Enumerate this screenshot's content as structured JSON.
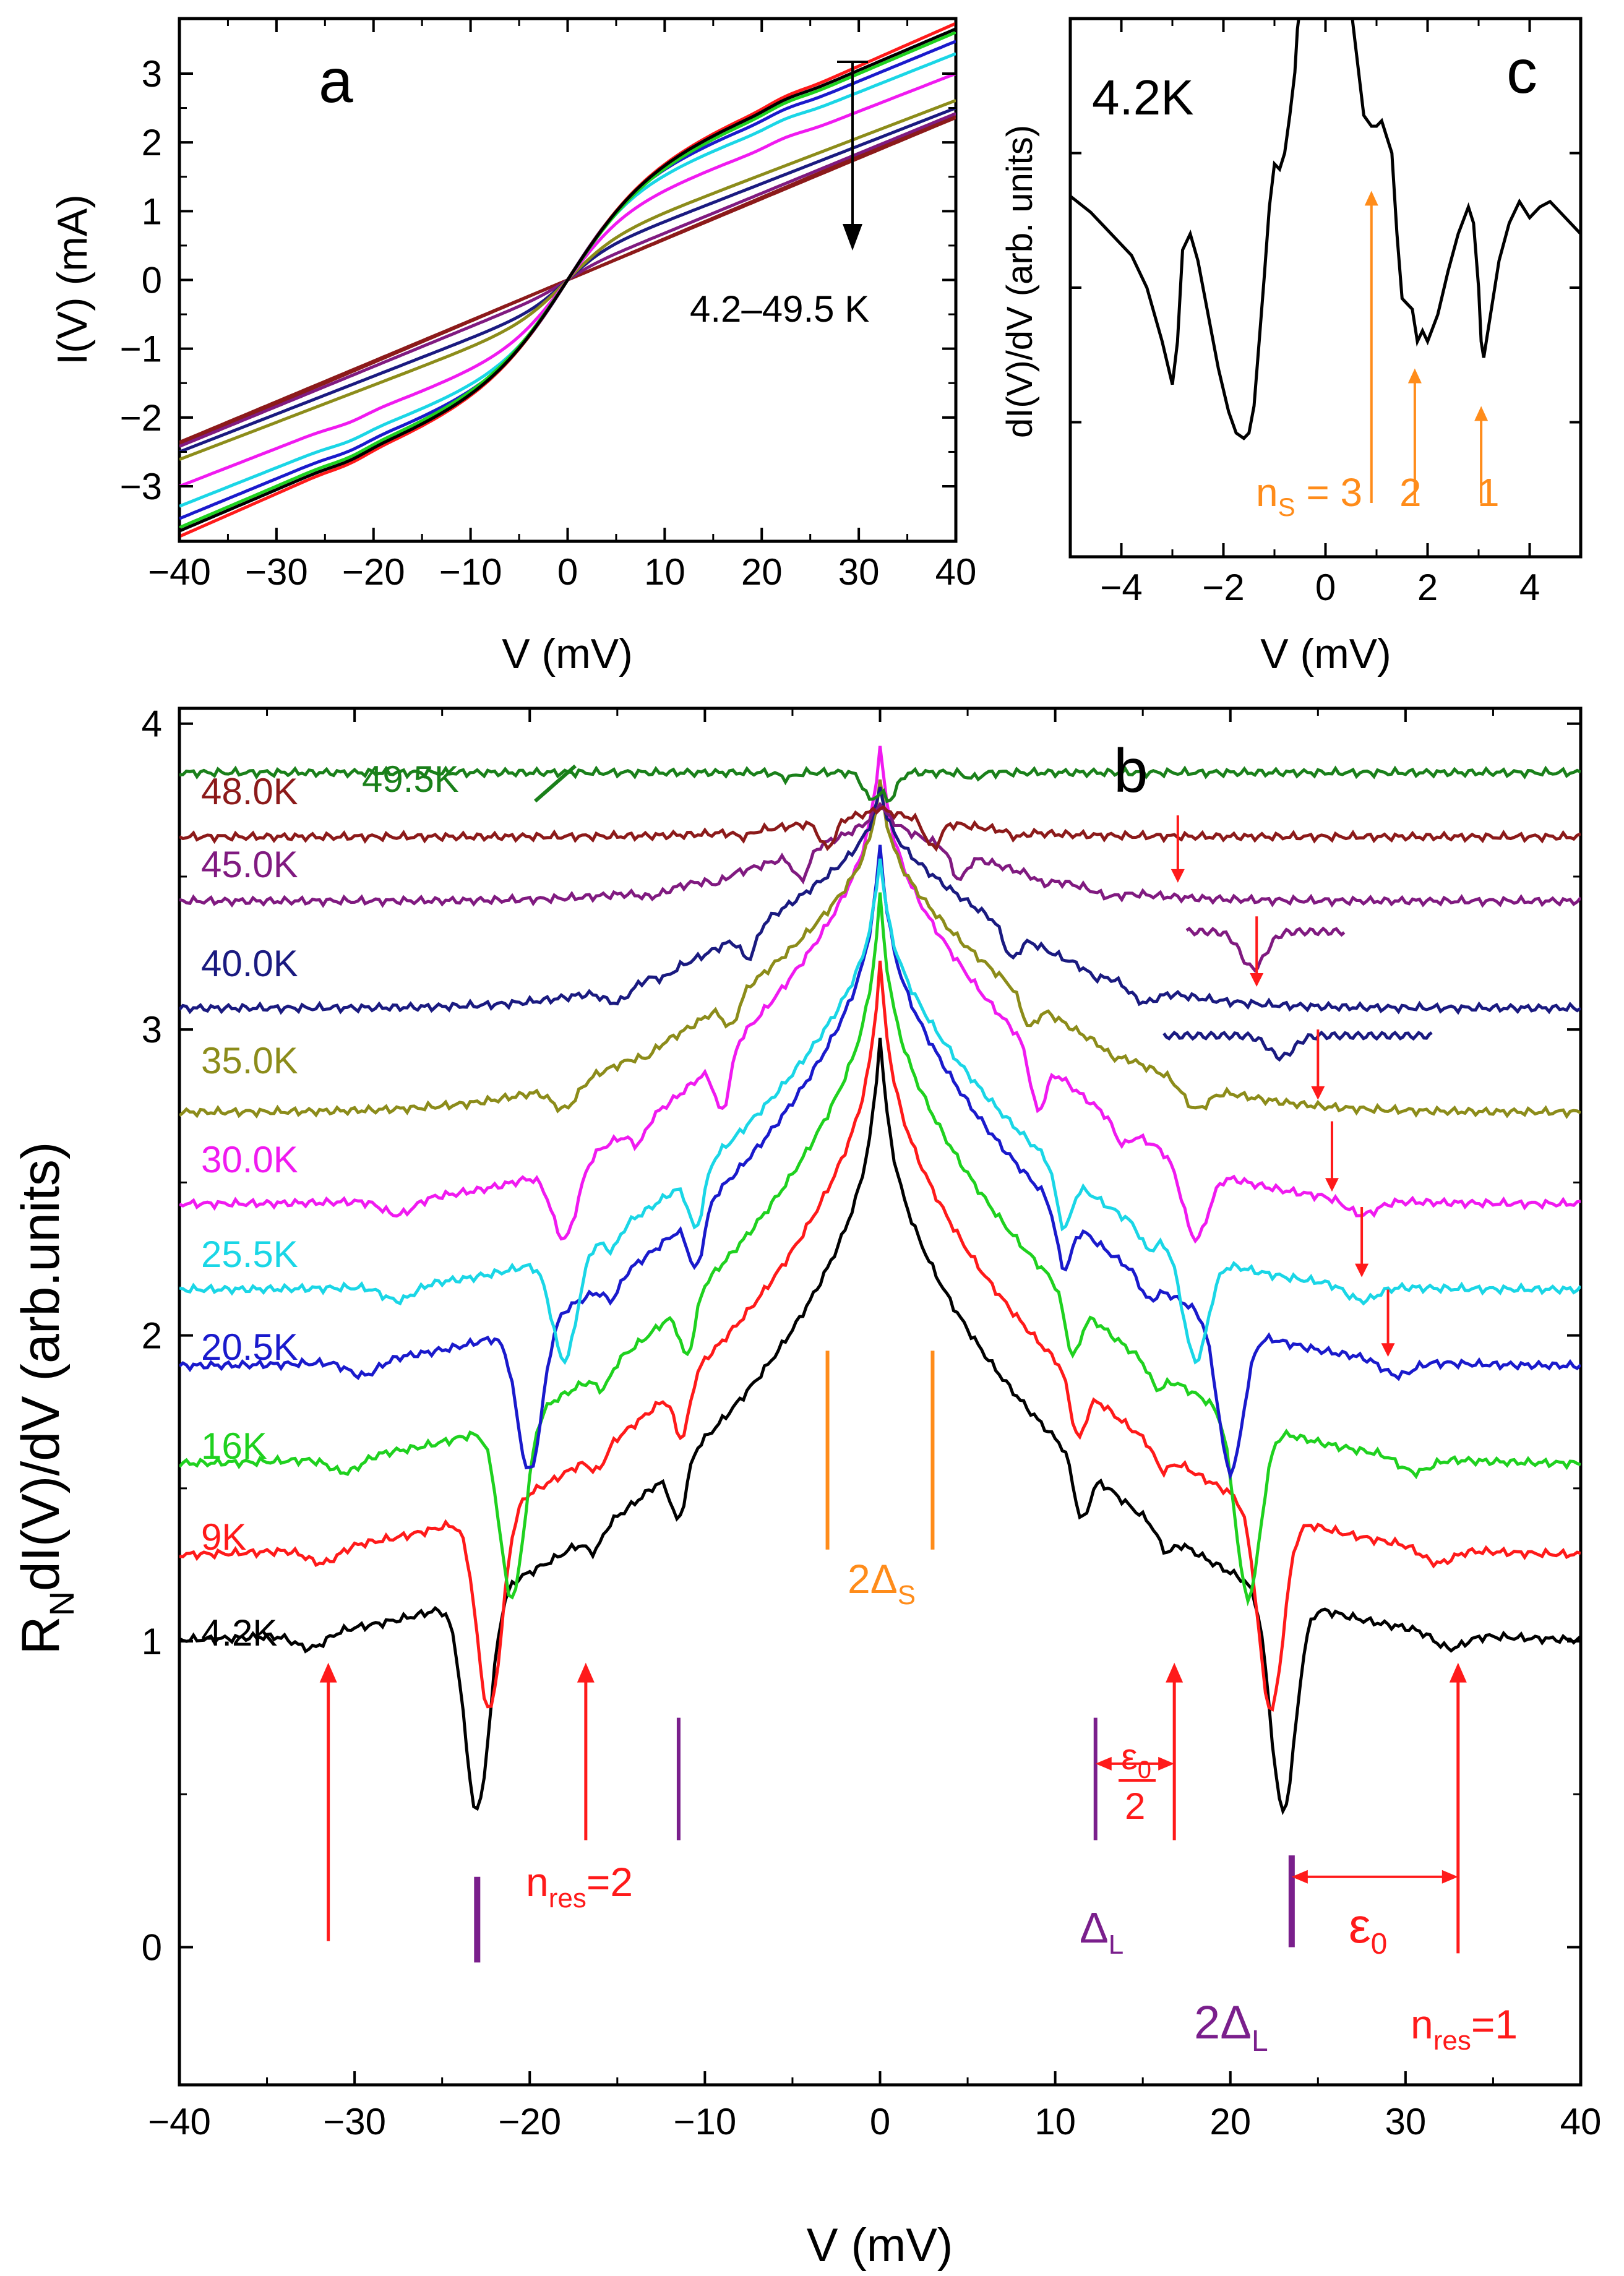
{
  "figure": {
    "colors": {
      "orange": "#ff8c1a",
      "red": "#ff1a1a",
      "purple": "#7a1f8c",
      "black": "#000000"
    }
  },
  "chart_data": [
    {
      "panel": "a",
      "type": "line",
      "label": "a",
      "xlabel": "V (mV)",
      "ylabel": "I(V) (mA)",
      "xlim": [
        -40,
        40
      ],
      "ylim": [
        -3.8,
        3.8
      ],
      "xticks": [
        -40,
        -30,
        -20,
        -10,
        0,
        10,
        20,
        30,
        40
      ],
      "xtick_labels": [
        "−40",
        "−30",
        "−20",
        "−10",
        "0",
        "10",
        "20",
        "30",
        "40"
      ],
      "yticks": [
        -3,
        -2,
        -1,
        0,
        1,
        2,
        3
      ],
      "ytick_labels": [
        "−3",
        "−2",
        "−1",
        "0",
        "1",
        "2",
        "3"
      ],
      "annotation": "4.2–49.5 K",
      "series": [
        {
          "name": "4.2K",
          "color": "#000000",
          "slope": 0.06,
          "step": 1.25,
          "width": 8
        },
        {
          "name": "9K",
          "color": "#ff1a1a",
          "slope": 0.062,
          "step": 1.25,
          "width": 8
        },
        {
          "name": "16K",
          "color": "#1fd11f",
          "slope": 0.06,
          "step": 1.2,
          "width": 8
        },
        {
          "name": "20.5K",
          "color": "#1a1acc",
          "slope": 0.058,
          "step": 1.15,
          "width": 7
        },
        {
          "name": "25.5K",
          "color": "#1ad6e6",
          "slope": 0.056,
          "step": 1.05,
          "width": 6.5
        },
        {
          "name": "30.0K",
          "color": "#f01af0",
          "slope": 0.055,
          "step": 0.8,
          "width": 6
        },
        {
          "name": "35.0K",
          "color": "#8c8c1a",
          "slope": 0.054,
          "step": 0.45,
          "width": 5
        },
        {
          "name": "40.0K",
          "color": "#1a1a80",
          "slope": 0.055,
          "step": 0.3,
          "width": 4
        },
        {
          "name": "45.0K",
          "color": "#801a80",
          "slope": 0.058,
          "step": 0.1,
          "width": 3
        },
        {
          "name": "48.0K",
          "color": "#8c1a1a",
          "slope": 0.06,
          "step": 0.0,
          "width": 3
        },
        {
          "name": "49.5K",
          "color": "#8c1a1a",
          "slope": 0.059,
          "step": 0.0,
          "width": 3
        }
      ]
    },
    {
      "panel": "c",
      "type": "line",
      "label": "c",
      "temperature": "4.2K",
      "xlabel": "V (mV)",
      "ylabel": "dI(V)/dV (arb. units)",
      "xlim": [
        -5,
        5
      ],
      "ylim": [
        0.1,
        1.1
      ],
      "xticks": [
        -4,
        -2,
        0,
        2,
        4
      ],
      "xtick_labels": [
        "−4",
        "−2",
        "0",
        "2",
        "4"
      ],
      "arrows": [
        {
          "x": 0.9,
          "y_from": 0.2,
          "y_to": 0.78,
          "label": "3"
        },
        {
          "x": 1.75,
          "y_from": 0.2,
          "y_to": 0.45,
          "label": "2"
        },
        {
          "x": 3.05,
          "y_from": 0.2,
          "y_to": 0.38,
          "label": "1"
        }
      ],
      "arrow_labels": {
        "ns_prefix": "n",
        "ns_sub": "S",
        "ns_eq": " = 3",
        "two": "2",
        "one": "1"
      },
      "curve": {
        "x": [
          -5.0,
          -4.6,
          -4.2,
          -3.8,
          -3.5,
          -3.2,
          -3.0,
          -2.9,
          -2.8,
          -2.65,
          -2.5,
          -2.3,
          -2.1,
          -1.9,
          -1.75,
          -1.6,
          -1.5,
          -1.4,
          -1.3,
          -1.2,
          -1.1,
          -1.0,
          -0.9,
          -0.8,
          -0.7,
          -0.6,
          -0.55,
          -0.5,
          0.5,
          0.55,
          0.6,
          0.75,
          0.9,
          1.0,
          1.1,
          1.2,
          1.3,
          1.4,
          1.5,
          1.6,
          1.7,
          1.8,
          1.9,
          2.0,
          2.2,
          2.4,
          2.6,
          2.8,
          2.9,
          3.0,
          3.05,
          3.1,
          3.2,
          3.4,
          3.6,
          3.8,
          4.0,
          4.2,
          4.4,
          4.6,
          4.8,
          5.0
        ],
        "y": [
          0.77,
          0.74,
          0.7,
          0.66,
          0.6,
          0.5,
          0.42,
          0.5,
          0.67,
          0.7,
          0.65,
          0.55,
          0.45,
          0.37,
          0.33,
          0.32,
          0.33,
          0.38,
          0.5,
          0.62,
          0.75,
          0.83,
          0.82,
          0.85,
          0.92,
          1.0,
          1.08,
          1.12,
          1.12,
          1.08,
          1.04,
          0.92,
          0.9,
          0.9,
          0.91,
          0.88,
          0.85,
          0.7,
          0.58,
          0.57,
          0.56,
          0.5,
          0.52,
          0.5,
          0.55,
          0.63,
          0.7,
          0.75,
          0.72,
          0.6,
          0.5,
          0.47,
          0.53,
          0.65,
          0.72,
          0.76,
          0.73,
          0.75,
          0.76,
          0.74,
          0.72,
          0.7
        ]
      }
    },
    {
      "panel": "b",
      "type": "line",
      "label": "b",
      "xlabel": "V (mV)",
      "ylabel": "RNdI(V)/dV (arb.units)",
      "ylabel_parts": {
        "r": "R",
        "n": "N",
        "rest": "dI(V)/dV (arb.units)"
      },
      "xlim": [
        -40,
        40
      ],
      "ylim": [
        -0.45,
        4.05
      ],
      "xticks": [
        -40,
        -30,
        -20,
        -10,
        0,
        10,
        20,
        30,
        40
      ],
      "xtick_labels": [
        "−40",
        "−30",
        "−20",
        "−10",
        "0",
        "10",
        "20",
        "30",
        "40"
      ],
      "yticks": [
        0,
        1,
        2,
        3,
        4
      ],
      "ytick_labels": [
        "0",
        "1",
        "2",
        "3",
        "4"
      ],
      "series": [
        {
          "name": "4.2K",
          "color": "#000000",
          "offset": 1.0,
          "peak": 1.65,
          "gapL": 23.0,
          "dipL": 0.7,
          "dipS": 11.5
        },
        {
          "name": "9K",
          "color": "#ff1a1a",
          "offset": 1.28,
          "peak": 1.62,
          "gapL": 22.3,
          "dipL": 0.65,
          "dipS": 11.3
        },
        {
          "name": "16K",
          "color": "#1fd11f",
          "offset": 1.58,
          "peak": 1.55,
          "gapL": 21.0,
          "dipL": 0.58,
          "dipS": 11.0
        },
        {
          "name": "20.5K",
          "color": "#1a1acc",
          "offset": 1.9,
          "peak": 1.42,
          "gapL": 20.0,
          "dipL": 0.48,
          "dipS": 10.5
        },
        {
          "name": "25.5K",
          "color": "#1ad6e6",
          "offset": 2.15,
          "peak": 1.18,
          "gapL": 18.0,
          "dipL": 0.35,
          "dipS": 10.5
        },
        {
          "name": "30.0K",
          "color": "#f01af0",
          "offset": 2.43,
          "peak": 1.25,
          "gapL": 18.0,
          "dipL": 0.24,
          "dipS": 9.0
        },
        {
          "name": "35.0K",
          "color": "#8c8c1a",
          "offset": 2.73,
          "peak": 0.9,
          "gapL": 18.0,
          "dipL": 0.08,
          "dipS": 8.5
        },
        {
          "name": "40.0K",
          "color": "#1a1a80",
          "offset": 3.07,
          "peak": 0.6,
          "gapL": 15.0,
          "dipL": 0.05,
          "dipS": 7.5
        },
        {
          "name": "45.0K",
          "color": "#801a80",
          "offset": 3.42,
          "peak": 0.27,
          "gapL": 13.0,
          "dipL": 0.02,
          "dipS": 4.5
        },
        {
          "name": "48.0K",
          "color": "#8c1a1a",
          "offset": 3.63,
          "peak": 0.08,
          "gapL": 8.0,
          "dipL": 0.0,
          "dipS": 3.0
        },
        {
          "name": "49.5K",
          "color": "#1a801a",
          "offset": 3.84,
          "peak": 0.0,
          "gapL": 4.0,
          "dipL": 0.0,
          "dipS": 0.5
        }
      ],
      "inset_curves": [
        {
          "color": "#801a80",
          "x_from": 17.5,
          "x_to": 26.5,
          "y_base": 3.32,
          "dip_x": 21.3,
          "dip_depth": 0.12
        },
        {
          "color": "#1a1a80",
          "x_from": 16.2,
          "x_to": 31.5,
          "y_base": 2.98,
          "dip_x": 22.9,
          "dip_depth": 0.07
        }
      ],
      "red_small_arrows": [
        {
          "x": 17.0,
          "y_top": 3.7,
          "y_bot": 3.48
        },
        {
          "x": 21.5,
          "y_top": 3.37,
          "y_bot": 3.14
        },
        {
          "x": 25.0,
          "y_top": 3.0,
          "y_bot": 2.77
        },
        {
          "x": 25.8,
          "y_top": 2.7,
          "y_bot": 2.47
        },
        {
          "x": 27.5,
          "y_top": 2.42,
          "y_bot": 2.19
        },
        {
          "x": 29.0,
          "y_top": 2.15,
          "y_bot": 1.93
        }
      ],
      "orange_marks": {
        "x": [
          -3.0,
          3.0
        ],
        "y_from": 1.3,
        "y_to": 1.95
      },
      "purple_marks": [
        {
          "x": -11.5,
          "y_from": 0.35,
          "y_to": 0.75,
          "thick": false
        },
        {
          "x": 12.3,
          "y_from": 0.35,
          "y_to": 0.75,
          "thick": false
        },
        {
          "x": -23.0,
          "y_from": -0.05,
          "y_to": 0.23,
          "thick": true
        },
        {
          "x": 23.5,
          "y_from": 0.0,
          "y_to": 0.3,
          "thick": true
        }
      ],
      "red_arrows_up": [
        {
          "x": -31.5,
          "y_from": 0.02,
          "y_to": 0.93
        },
        {
          "x": -16.8,
          "y_from": 0.35,
          "y_to": 0.93
        },
        {
          "x": 16.8,
          "y_from": 0.35,
          "y_to": 0.93
        },
        {
          "x": 33.0,
          "y_from": -0.02,
          "y_to": 0.93
        }
      ],
      "double_arrows": [
        {
          "x1": 12.3,
          "x2": 16.8,
          "y": 0.6
        },
        {
          "x1": 23.5,
          "x2": 33.0,
          "y": 0.23
        }
      ],
      "labels": {
        "delta_s": {
          "prefix": "2Δ",
          "sub": "S"
        },
        "delta_l": {
          "prefix": "Δ",
          "sub": "L"
        },
        "two_delta_l": {
          "prefix": "2Δ",
          "sub": "L"
        },
        "nres2": {
          "prefix": "n",
          "sub": "res",
          "suffix": "=2"
        },
        "nres1": {
          "prefix": "n",
          "sub": "res",
          "suffix": "=1"
        },
        "eps": {
          "prefix": "ε",
          "sub": "0"
        },
        "eps_half": {
          "num": "ε",
          "sub": "0",
          "den": "2"
        }
      }
    }
  ]
}
